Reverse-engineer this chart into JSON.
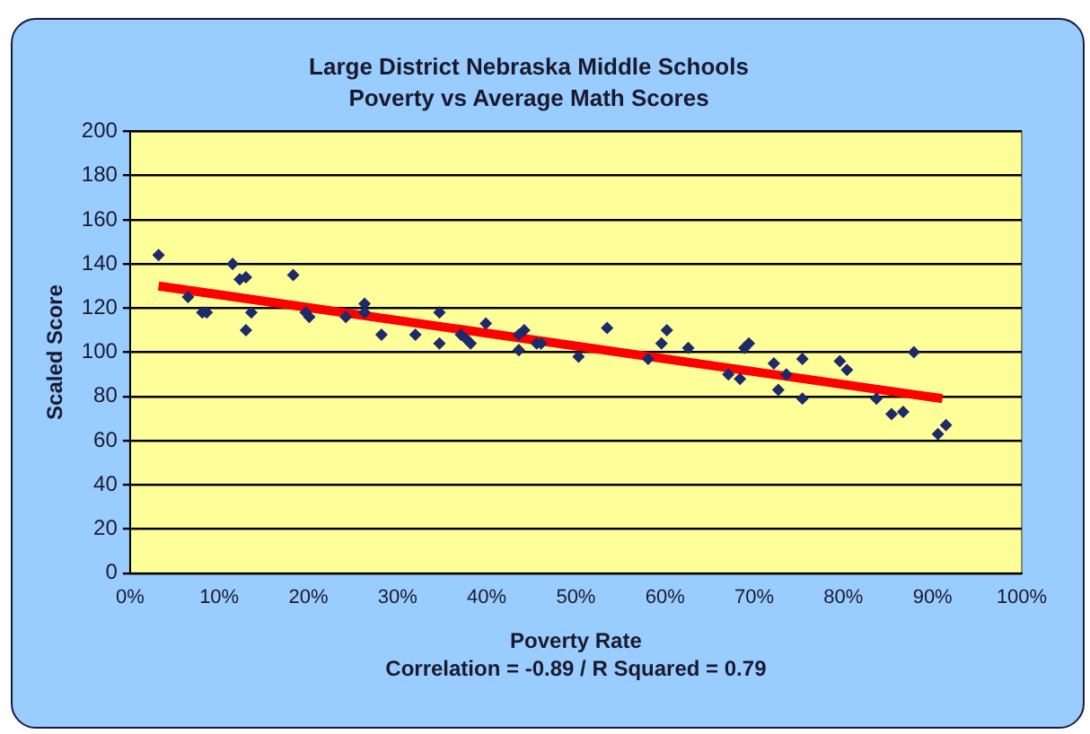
{
  "chart_data": {
    "type": "scatter",
    "title": "Large District Nebraska Middle Schools",
    "subtitle": "Poverty vs Average Math Scores",
    "xlabel": "Poverty Rate",
    "ylabel": "Scaled Score",
    "annotations": [
      "Correlation = -0.89 / R Squared = 0.79"
    ],
    "xlim": [
      0,
      100
    ],
    "xticks": [
      {
        "value": 0,
        "label": "0%"
      },
      {
        "value": 10,
        "label": "10%"
      },
      {
        "value": 20,
        "label": "20%"
      },
      {
        "value": 30,
        "label": "30%"
      },
      {
        "value": 40,
        "label": "40%"
      },
      {
        "value": 50,
        "label": "50%"
      },
      {
        "value": 60,
        "label": "60%"
      },
      {
        "value": 70,
        "label": "70%"
      },
      {
        "value": 80,
        "label": "80%"
      },
      {
        "value": 90,
        "label": "90%"
      },
      {
        "value": 100,
        "label": "100%"
      }
    ],
    "ylim": [
      0,
      200
    ],
    "yticks": [
      0,
      20,
      40,
      60,
      80,
      100,
      120,
      140,
      160,
      180,
      200
    ],
    "grid": "y",
    "legend": false,
    "series": [
      {
        "color": "#1f2a6b",
        "marker": "diamond",
        "x": [
          3.2,
          6.5,
          8.1,
          8.6,
          11.5,
          12.3,
          13,
          13,
          13.6,
          18.3,
          19.7,
          20.1,
          24.2,
          26.3,
          26.3,
          28.2,
          32,
          34.7,
          34.7,
          37.1,
          37.7,
          38.2,
          39.9,
          43.6,
          43.6,
          44.2,
          45.6,
          46.1,
          50.3,
          53.5,
          58.1,
          59.6,
          60.2,
          62.6,
          67.1,
          68.4,
          68.9,
          69.4,
          72.2,
          72.7,
          73.6,
          75.4,
          75.4,
          79.6,
          80.4,
          83.7,
          85.4,
          86.7,
          87.9,
          90.6,
          91.5
        ],
        "values": [
          144,
          125,
          118,
          118,
          140,
          133,
          134,
          110,
          118,
          135,
          118,
          116,
          116,
          122,
          118,
          108,
          108,
          118,
          104,
          108,
          106,
          104,
          113,
          108,
          101,
          110,
          104,
          104,
          98,
          111,
          97,
          104,
          110,
          102,
          90,
          88,
          102,
          104,
          95,
          83,
          90,
          97,
          79,
          96,
          92,
          79,
          72,
          73,
          100,
          63,
          67
        ]
      },
      {
        "type": "line",
        "color": "#ff0000",
        "marker": "none",
        "line_style": "solid",
        "x": [
          3.2,
          91.1
        ],
        "values": [
          130,
          79
        ]
      }
    ]
  }
}
